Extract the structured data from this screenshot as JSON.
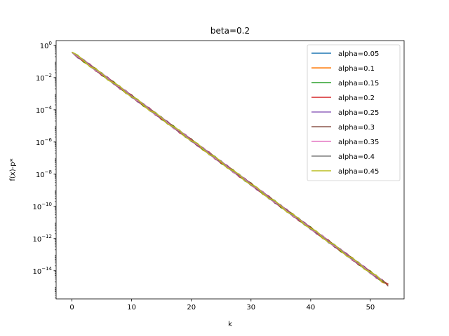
{
  "chart_data": {
    "type": "line",
    "title": "beta=0.2",
    "xlabel": "k",
    "ylabel": "f(x)-p*",
    "yscale": "log",
    "xlim": [
      -2.65,
      55.65
    ],
    "ylim_exp": [
      -15.75,
      0.3
    ],
    "xticks": [
      0,
      10,
      20,
      30,
      40,
      50
    ],
    "yticks": [
      {
        "exp": 0,
        "base": "10",
        "sup": "0"
      },
      {
        "exp": -2,
        "base": "10",
        "sup": "−2"
      },
      {
        "exp": -4,
        "base": "10",
        "sup": "−4"
      },
      {
        "exp": -6,
        "base": "10",
        "sup": "−6"
      },
      {
        "exp": -8,
        "base": "10",
        "sup": "−8"
      },
      {
        "exp": -10,
        "base": "10",
        "sup": "−10"
      },
      {
        "exp": -12,
        "base": "10",
        "sup": "−12"
      },
      {
        "exp": -14,
        "base": "10",
        "sup": "−14"
      }
    ],
    "grid": false,
    "legend_position": "top-right",
    "series": [
      {
        "name": "alpha=0.05",
        "color": "#1f77b4",
        "n": 53
      },
      {
        "name": "alpha=0.1",
        "color": "#ff7f0e",
        "n": 54
      },
      {
        "name": "alpha=0.15",
        "color": "#2ca02c",
        "n": 54
      },
      {
        "name": "alpha=0.2",
        "color": "#d62728",
        "n": 54
      },
      {
        "name": "alpha=0.25",
        "color": "#9467bd",
        "n": 53
      },
      {
        "name": "alpha=0.3",
        "color": "#8c564b",
        "n": 54
      },
      {
        "name": "alpha=0.35",
        "color": "#e377c2",
        "n": 53
      },
      {
        "name": "alpha=0.4",
        "color": "#7f7f7f",
        "n": 53
      },
      {
        "name": "alpha=0.45",
        "color": "#bcbd22",
        "n": 53
      }
    ]
  }
}
